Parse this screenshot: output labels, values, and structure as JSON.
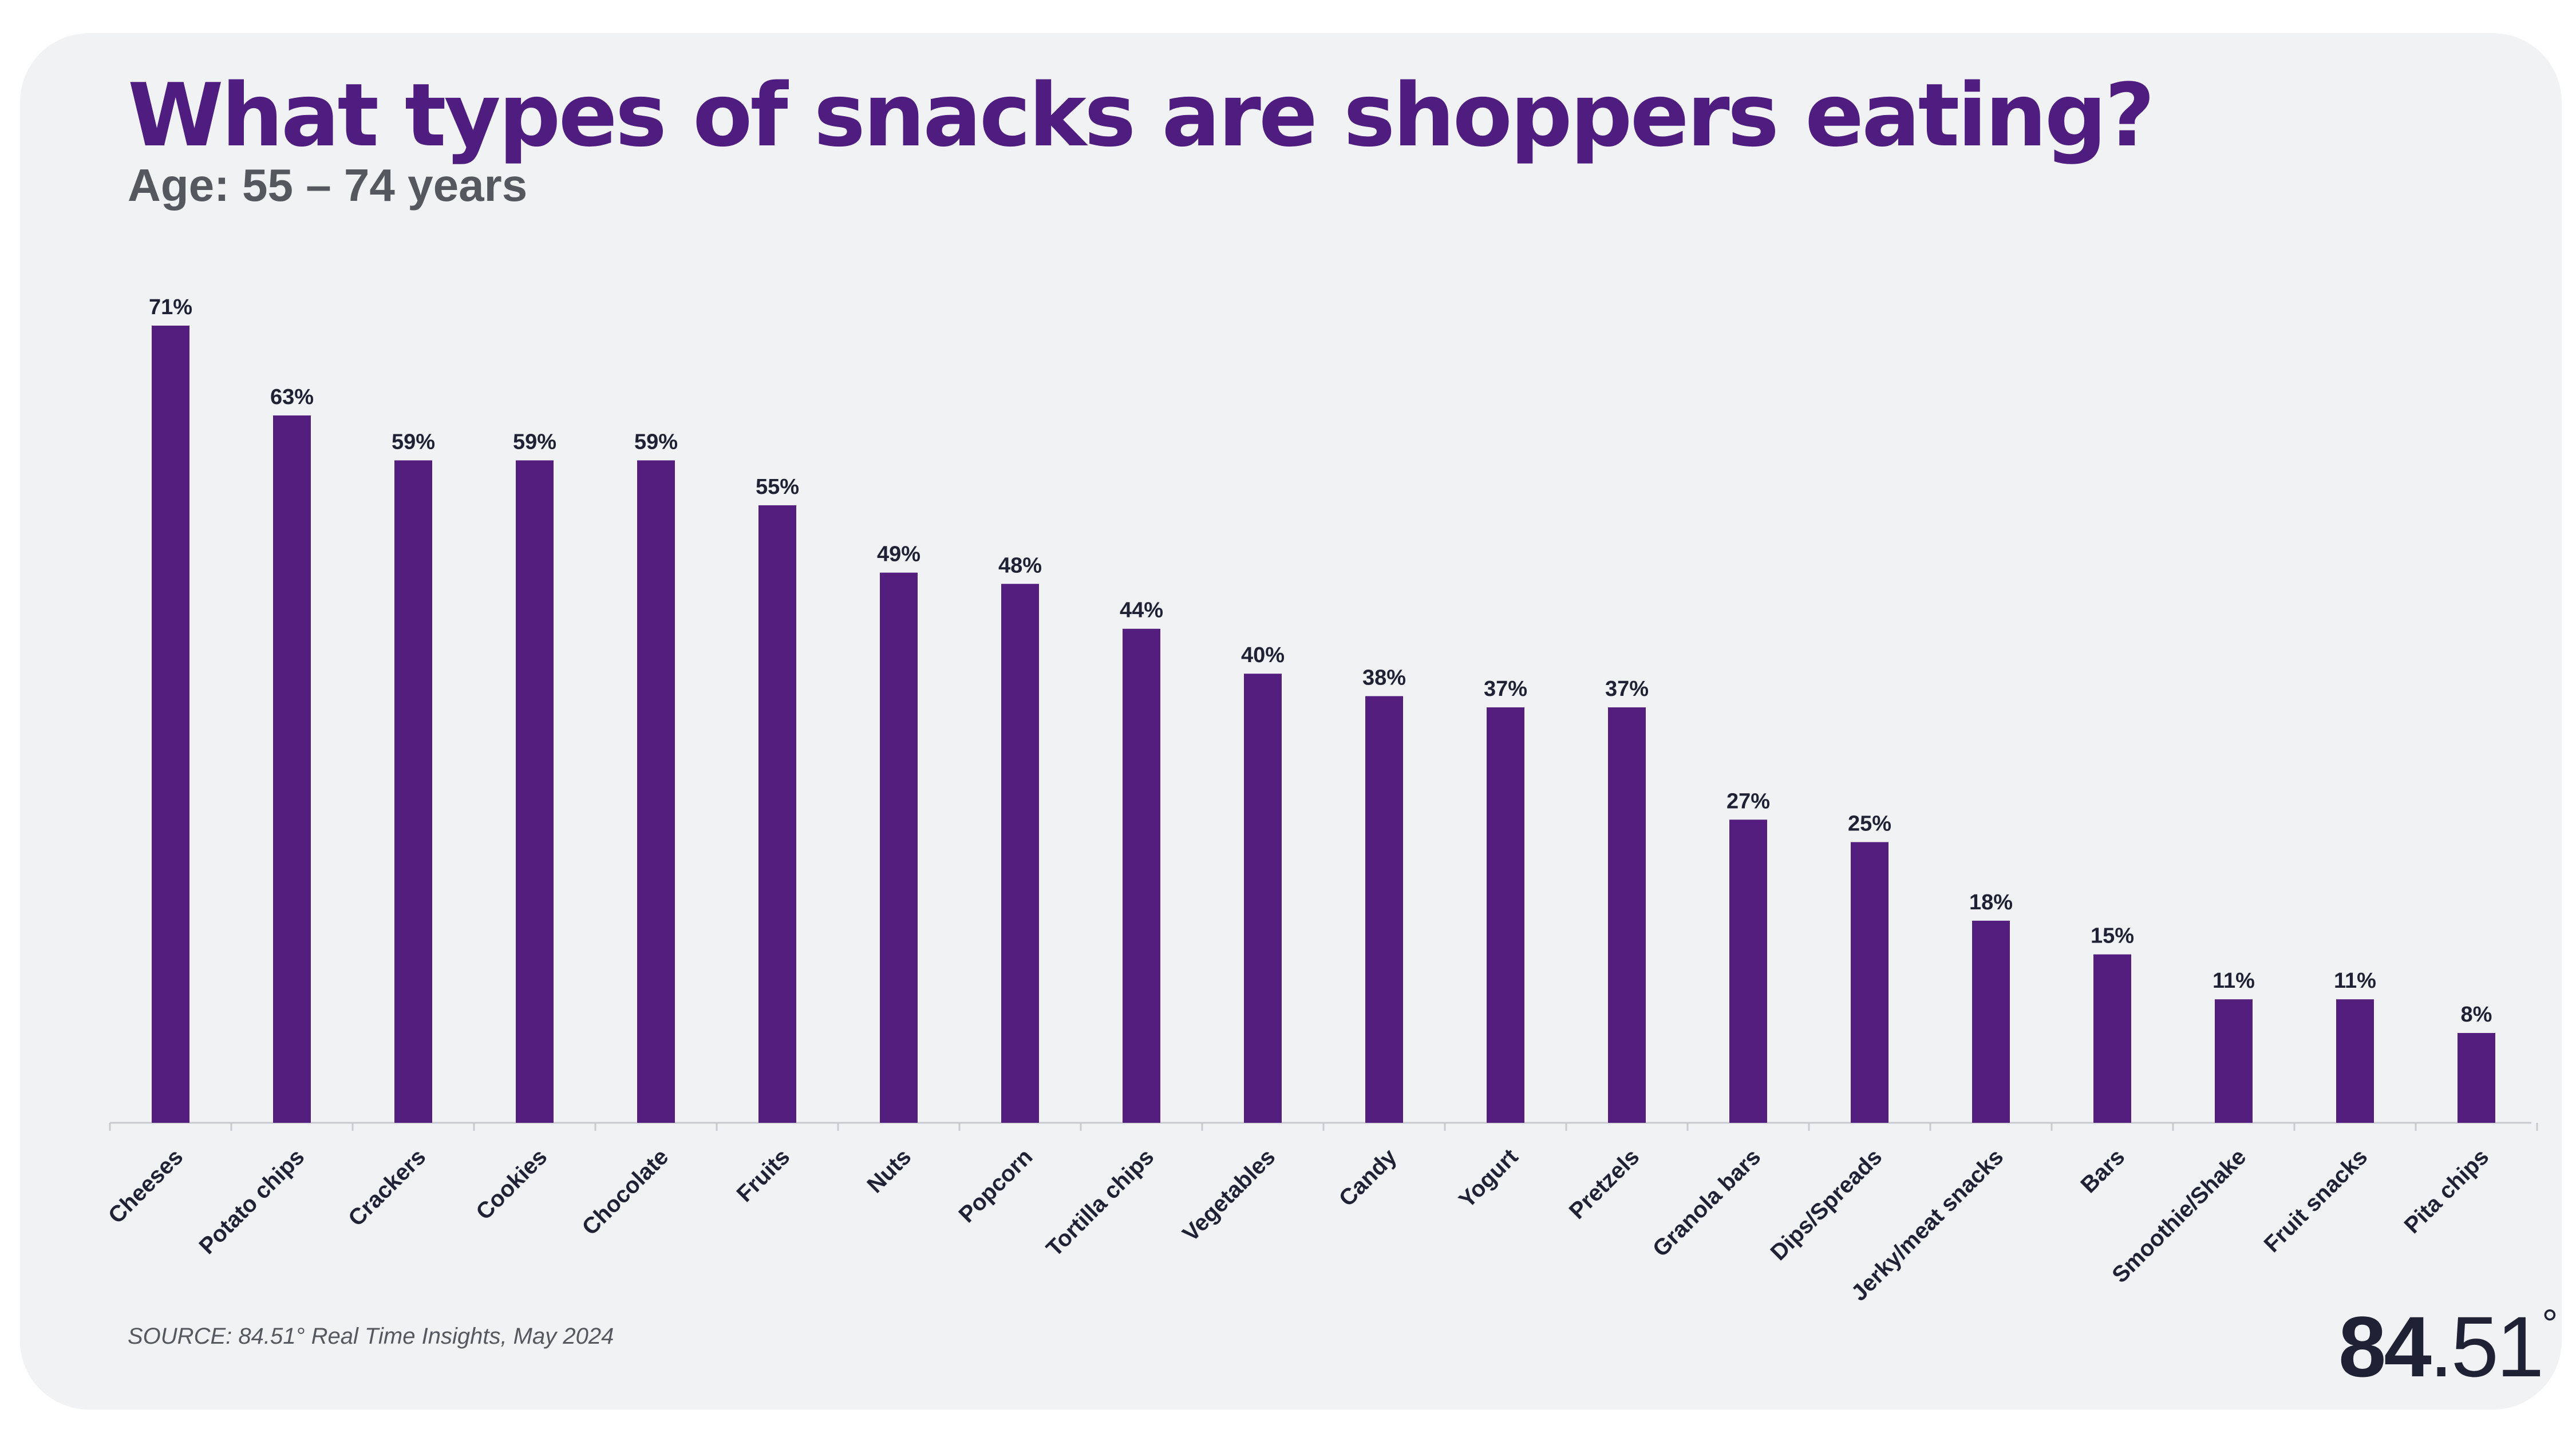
{
  "chart_data": {
    "type": "bar",
    "title": "What types of snacks are shoppers eating?",
    "subtitle": "Age: 55 – 74 years",
    "categories": [
      "Cheeses",
      "Potato chips",
      "Crackers",
      "Cookies",
      "Chocolate",
      "Fruits",
      "Nuts",
      "Popcorn",
      "Tortilla chips",
      "Vegetables",
      "Candy",
      "Yogurt",
      "Pretzels",
      "Granola bars",
      "Dips/Spreads",
      "Jerky/meat snacks",
      "Bars",
      "Smoothie/Shake",
      "Fruit snacks",
      "Pita chips"
    ],
    "values": [
      71,
      63,
      59,
      59,
      59,
      55,
      49,
      48,
      44,
      40,
      38,
      37,
      37,
      27,
      25,
      18,
      15,
      11,
      11,
      8
    ],
    "value_labels": [
      "71%",
      "63%",
      "59%",
      "59%",
      "59%",
      "55%",
      "49%",
      "48%",
      "44%",
      "40%",
      "38%",
      "37%",
      "37%",
      "27%",
      "25%",
      "18%",
      "15%",
      "11%",
      "11%",
      "8%"
    ],
    "xlabel": "",
    "ylabel": "",
    "ylim": [
      0,
      71
    ],
    "grid": false,
    "legend": "none",
    "bar_color": "#531e7d"
  },
  "source": "SOURCE: 84.51° Real Time Insights, May 2024",
  "logo": {
    "part1": "84",
    "part2": ".51",
    "degree": "°"
  },
  "colors": {
    "title": "#4f1c80",
    "bar": "#531e7d",
    "card_background": "#f1f2f4",
    "text_dark": "#1f2235"
  }
}
